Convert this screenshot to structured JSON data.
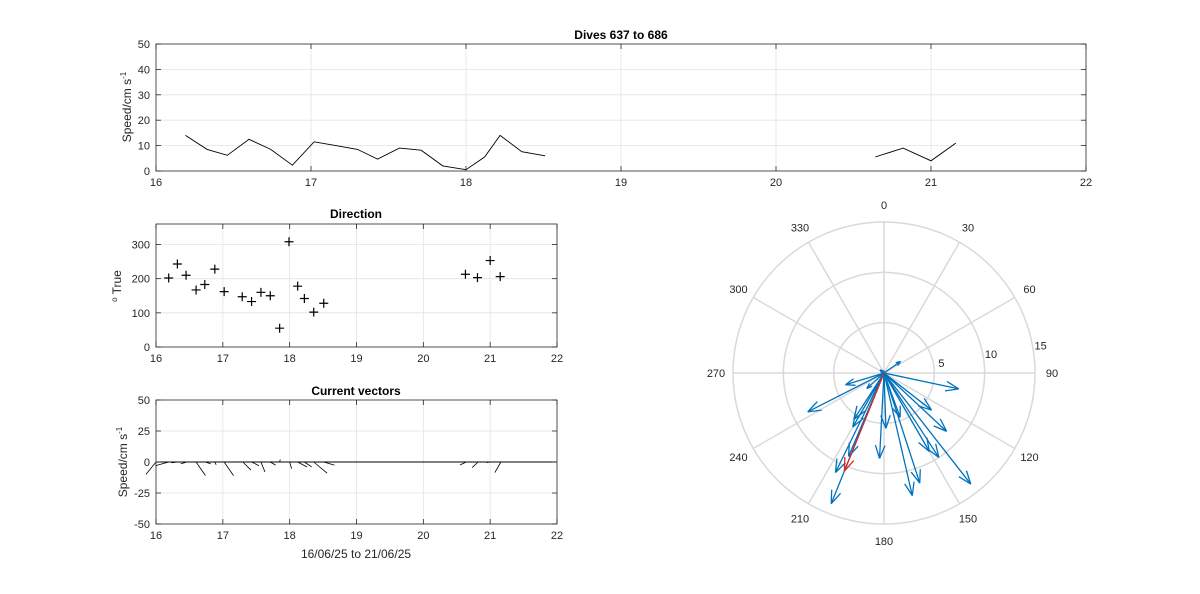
{
  "chart_data": [
    {
      "id": "speed",
      "type": "line",
      "title": "Dives 637 to 686",
      "xlabel": "",
      "ylabel": "Speed/cm s",
      "ylabel_sup": "-1",
      "xlim": [
        16,
        22
      ],
      "ylim": [
        0,
        50
      ],
      "xticks": [
        16,
        17,
        18,
        19,
        20,
        21,
        22
      ],
      "yticks": [
        0,
        10,
        20,
        30,
        40,
        50
      ],
      "grid": true,
      "color": "#000000",
      "segments": [
        [
          [
            16.19,
            14
          ],
          [
            16.33,
            8.5
          ],
          [
            16.46,
            6.2
          ],
          [
            16.6,
            12.5
          ],
          [
            16.74,
            8.5
          ],
          [
            16.88,
            2.3
          ],
          [
            17.02,
            11.5
          ],
          [
            17.16,
            10
          ],
          [
            17.3,
            8.5
          ],
          [
            17.43,
            4.7
          ],
          [
            17.57,
            9
          ],
          [
            17.71,
            8.2
          ],
          [
            17.85,
            2
          ],
          [
            18.0,
            0.5
          ],
          [
            18.12,
            5.5
          ],
          [
            18.22,
            14
          ],
          [
            18.36,
            7.6
          ],
          [
            18.51,
            6
          ]
        ],
        [
          [
            20.64,
            5.5
          ],
          [
            20.82,
            9
          ],
          [
            21.0,
            4
          ],
          [
            21.16,
            11
          ]
        ]
      ]
    },
    {
      "id": "direction",
      "type": "scatter",
      "title": "Direction",
      "xlabel": "",
      "ylabel": "True",
      "ylabel_prefix": "o",
      "xlim": [
        16,
        22
      ],
      "ylim": [
        0,
        360
      ],
      "xticks": [
        16,
        17,
        18,
        19,
        20,
        21,
        22
      ],
      "yticks": [
        0,
        100,
        200,
        300
      ],
      "grid": true,
      "marker": "+",
      "color": "#000000",
      "points": [
        [
          16.19,
          202
        ],
        [
          16.32,
          243
        ],
        [
          16.45,
          210
        ],
        [
          16.6,
          167
        ],
        [
          16.73,
          183
        ],
        [
          16.88,
          228
        ],
        [
          17.02,
          162
        ],
        [
          17.29,
          147
        ],
        [
          17.43,
          133
        ],
        [
          17.57,
          160
        ],
        [
          17.71,
          150
        ],
        [
          17.85,
          55
        ],
        [
          17.99,
          308
        ],
        [
          18.12,
          178
        ],
        [
          18.22,
          142
        ],
        [
          18.36,
          102
        ],
        [
          18.51,
          128
        ],
        [
          20.63,
          213
        ],
        [
          20.81,
          203
        ],
        [
          21.0,
          253
        ],
        [
          21.15,
          206
        ]
      ]
    },
    {
      "id": "vectors",
      "type": "stick",
      "title": "Current vectors",
      "xlabel": "16/06/25 to 21/06/25",
      "ylabel": "Speed/cm s",
      "ylabel_sup": "-1",
      "xlim": [
        16,
        22
      ],
      "ylim": [
        -50,
        50
      ],
      "xticks": [
        16,
        17,
        18,
        19,
        20,
        21,
        22
      ],
      "yticks": [
        -50,
        -25,
        0,
        25,
        50
      ],
      "grid": true,
      "color": "#000000",
      "sticks": [
        [
          16.0,
          -0.15,
          -10
        ],
        [
          16.19,
          -0.2,
          -3
        ],
        [
          16.33,
          -0.1,
          -0.6
        ],
        [
          16.46,
          -0.09,
          -1.5
        ],
        [
          16.6,
          0.14,
          -11
        ],
        [
          16.74,
          0.08,
          -1.5
        ],
        [
          16.88,
          0.02,
          -2.3
        ],
        [
          17.02,
          0.14,
          -11
        ],
        [
          17.3,
          0.12,
          -6.5
        ],
        [
          17.43,
          0.11,
          -3
        ],
        [
          17.57,
          0.06,
          -8
        ],
        [
          17.71,
          0.08,
          -2.5
        ],
        [
          17.85,
          0.01,
          2
        ],
        [
          18.0,
          0.03,
          -5.5
        ],
        [
          18.12,
          0.14,
          -4
        ],
        [
          18.22,
          0.11,
          -4
        ],
        [
          18.36,
          0.2,
          -9
        ],
        [
          18.51,
          0.16,
          -2.5
        ],
        [
          20.64,
          -0.09,
          -2.4
        ],
        [
          20.82,
          -0.09,
          -4.5
        ],
        [
          21.0,
          -0.05,
          -0.5
        ],
        [
          21.16,
          -0.09,
          -8.5
        ]
      ]
    },
    {
      "id": "compass",
      "type": "compass",
      "title": "",
      "r_max": 15,
      "r_ticks": [
        5,
        10,
        15
      ],
      "theta_labels": [
        "0",
        "30",
        "60",
        "90",
        "120",
        "150",
        "180",
        "210",
        "240",
        "270",
        "300",
        "330"
      ],
      "grid": true,
      "colors": {
        "vectors": "#0072BD",
        "last": "#D62728",
        "grid": "#D9D9D9"
      },
      "vectors": [
        [
          202,
          14
        ],
        [
          243,
          8.5
        ],
        [
          210,
          6.2
        ],
        [
          167,
          12.5
        ],
        [
          183,
          8.5
        ],
        [
          228,
          2.3
        ],
        [
          162,
          11.5
        ],
        [
          147,
          10
        ],
        [
          133,
          8.5
        ],
        [
          160,
          4.7
        ],
        [
          150,
          9
        ],
        [
          55,
          2
        ],
        [
          308,
          0.5
        ],
        [
          178,
          5.5
        ],
        [
          142,
          14
        ],
        [
          102,
          7.6
        ],
        [
          128,
          6
        ],
        [
          213,
          5.5
        ],
        [
          203,
          9
        ],
        [
          253,
          4
        ],
        [
          206,
          11
        ]
      ],
      "highlight": [
        [
          202,
          10.5
        ]
      ]
    }
  ]
}
